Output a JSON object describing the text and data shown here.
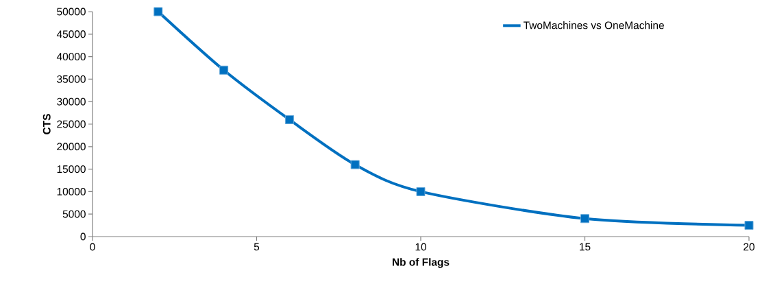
{
  "chart_data": {
    "type": "line",
    "xlabel": "Nb of Flags",
    "ylabel": "CTS",
    "x": [
      2,
      4,
      6,
      8,
      10,
      15,
      20
    ],
    "series": [
      {
        "name": "TwoMachines vs OneMachine",
        "color": "#0070c0",
        "values": [
          50000,
          37000,
          26000,
          16000,
          10000,
          4000,
          2500
        ]
      }
    ],
    "xlim": [
      0,
      20
    ],
    "xticks": [
      0,
      5,
      10,
      15,
      20
    ],
    "ylim": [
      0,
      50000
    ],
    "yticks": [
      0,
      5000,
      10000,
      15000,
      20000,
      25000,
      30000,
      35000,
      40000,
      45000,
      50000
    ],
    "marker": "square",
    "line_style": "solid",
    "grid": false,
    "legend": "top right"
  }
}
